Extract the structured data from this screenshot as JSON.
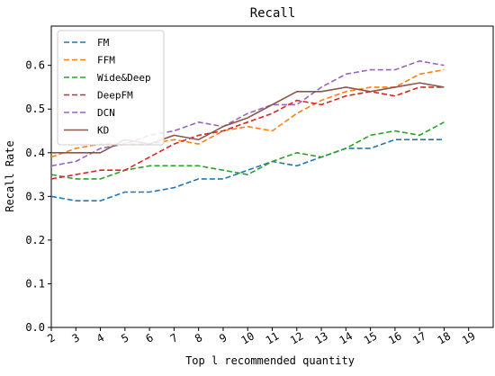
{
  "chart_data": {
    "type": "line",
    "title": "Recall",
    "xlabel": "Top l recommended quantity",
    "ylabel": "Recall Rate",
    "x": [
      2,
      3,
      4,
      5,
      6,
      7,
      8,
      9,
      10,
      11,
      12,
      13,
      14,
      15,
      16,
      17,
      18
    ],
    "xlim": [
      2,
      20
    ],
    "xticks": [
      "2",
      "3",
      "4",
      "5",
      "6",
      "7",
      "8",
      "9",
      "10",
      "11",
      "12",
      "13",
      "14",
      "15",
      "16",
      "17",
      "18",
      "19"
    ],
    "ylim": [
      0,
      0.69
    ],
    "yticks": [
      "0.0",
      "0.1",
      "0.2",
      "0.3",
      "0.4",
      "0.5",
      "0.6"
    ],
    "grid": false,
    "legend_position": "top-left",
    "series": [
      {
        "name": "FM",
        "color": "#1f77b4",
        "dash": "dashed",
        "values": [
          0.3,
          0.29,
          0.29,
          0.31,
          0.31,
          0.32,
          0.34,
          0.34,
          0.36,
          0.38,
          0.37,
          0.39,
          0.41,
          0.41,
          0.43,
          0.43,
          0.43
        ]
      },
      {
        "name": "FFM",
        "color": "#ff7f0e",
        "dash": "dashed",
        "values": [
          0.39,
          0.41,
          0.42,
          0.42,
          0.42,
          0.43,
          0.42,
          0.45,
          0.46,
          0.45,
          0.49,
          0.52,
          0.54,
          0.55,
          0.55,
          0.58,
          0.59
        ]
      },
      {
        "name": "Wide&Deep",
        "color": "#2ca02c",
        "dash": "dashed",
        "values": [
          0.35,
          0.34,
          0.34,
          0.36,
          0.37,
          0.37,
          0.37,
          0.36,
          0.35,
          0.38,
          0.4,
          0.39,
          0.41,
          0.44,
          0.45,
          0.44,
          0.47
        ]
      },
      {
        "name": "DeepFM",
        "color": "#d62728",
        "dash": "dashed",
        "values": [
          0.34,
          0.35,
          0.36,
          0.36,
          0.39,
          0.42,
          0.44,
          0.45,
          0.47,
          0.49,
          0.52,
          0.51,
          0.53,
          0.54,
          0.53,
          0.55,
          0.55
        ]
      },
      {
        "name": "DCN",
        "color": "#9467bd",
        "dash": "dashed",
        "values": [
          0.37,
          0.38,
          0.41,
          0.42,
          0.44,
          0.45,
          0.47,
          0.46,
          0.49,
          0.51,
          0.51,
          0.55,
          0.58,
          0.59,
          0.59,
          0.61,
          0.6
        ]
      },
      {
        "name": "KD",
        "color": "#8c564b",
        "dash": "solid",
        "values": [
          0.4,
          0.4,
          0.4,
          0.43,
          0.42,
          0.44,
          0.43,
          0.46,
          0.48,
          0.51,
          0.54,
          0.54,
          0.55,
          0.54,
          0.55,
          0.56,
          0.55
        ]
      }
    ]
  }
}
